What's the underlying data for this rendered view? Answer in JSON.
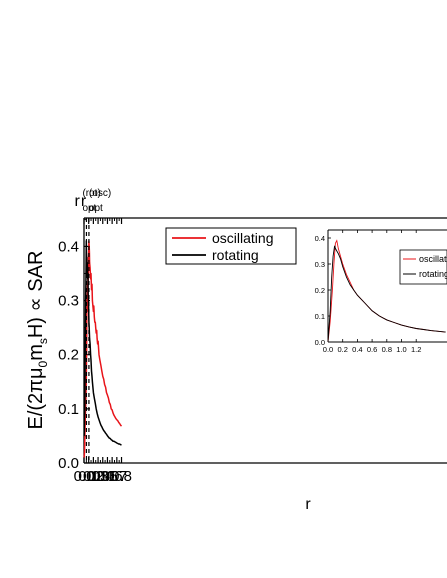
{
  "chart_data": [
    {
      "type": "line",
      "title": "",
      "xlabel": "r",
      "ylabel": "E/(2πμ₀mₛH) ∝ SAR",
      "ylabel_parts": {
        "pre": "E/(2π",
        "mu": "μ",
        "mu_sub": "0",
        "m": "m",
        "m_sub": "s",
        "post": "H) ∝ SAR"
      },
      "xlim": [
        0.0,
        0.8
      ],
      "ylim": [
        0.0,
        0.45
      ],
      "xticks": [
        "0.0",
        "0.1",
        "0.2",
        "0.3",
        "0.4",
        "0.5",
        "0.6",
        "0.7",
        "0.8"
      ],
      "yticks": [
        "0.0",
        "0.1",
        "0.2",
        "0.3",
        "0.4"
      ],
      "grid": false,
      "legend_position": "top-right",
      "series": [
        {
          "name": "oscillating",
          "color": "#e8141a",
          "x": [
            0.005,
            0.01,
            0.02,
            0.03,
            0.04,
            0.05,
            0.055,
            0.06,
            0.065,
            0.07,
            0.075,
            0.08,
            0.085,
            0.09,
            0.095,
            0.1,
            0.105,
            0.11,
            0.115,
            0.12,
            0.13,
            0.14,
            0.15,
            0.16,
            0.17,
            0.18,
            0.19,
            0.2,
            0.21,
            0.22,
            0.23,
            0.24,
            0.25,
            0.26,
            0.27,
            0.28,
            0.29,
            0.3,
            0.32,
            0.34,
            0.36,
            0.38,
            0.4,
            0.42,
            0.44,
            0.46,
            0.48,
            0.5,
            0.52,
            0.54,
            0.56,
            0.58,
            0.6,
            0.62,
            0.64,
            0.66,
            0.68,
            0.7,
            0.72,
            0.74,
            0.76,
            0.78,
            0.8
          ],
          "y": [
            0.01,
            0.02,
            0.05,
            0.09,
            0.12,
            0.16,
            0.2,
            0.27,
            0.31,
            0.28,
            0.33,
            0.3,
            0.36,
            0.33,
            0.38,
            0.39,
            0.41,
            0.4,
            0.39,
            0.37,
            0.36,
            0.34,
            0.35,
            0.32,
            0.33,
            0.3,
            0.29,
            0.28,
            0.29,
            0.27,
            0.26,
            0.26,
            0.25,
            0.24,
            0.245,
            0.23,
            0.22,
            0.225,
            0.2,
            0.19,
            0.18,
            0.17,
            0.16,
            0.155,
            0.145,
            0.14,
            0.13,
            0.125,
            0.12,
            0.112,
            0.108,
            0.1,
            0.098,
            0.092,
            0.088,
            0.085,
            0.082,
            0.08,
            0.078,
            0.075,
            0.073,
            0.07,
            0.068
          ]
        },
        {
          "name": "rotating",
          "color": "#000000",
          "x": [
            0.005,
            0.01,
            0.015,
            0.02,
            0.025,
            0.03,
            0.035,
            0.04,
            0.045,
            0.05,
            0.055,
            0.06,
            0.065,
            0.07,
            0.075,
            0.08,
            0.085,
            0.09,
            0.095,
            0.1,
            0.105,
            0.11,
            0.12,
            0.13,
            0.14,
            0.15,
            0.16,
            0.17,
            0.18,
            0.19,
            0.2,
            0.22,
            0.24,
            0.26,
            0.28,
            0.3,
            0.32,
            0.34,
            0.36,
            0.38,
            0.4,
            0.42,
            0.44,
            0.46,
            0.48,
            0.5,
            0.52,
            0.54,
            0.56,
            0.58,
            0.6,
            0.62,
            0.64,
            0.66,
            0.68,
            0.7,
            0.72,
            0.74,
            0.76,
            0.78,
            0.8
          ],
          "y": [
            0.05,
            0.1,
            0.09,
            0.14,
            0.2,
            0.26,
            0.3,
            0.33,
            0.37,
            0.41,
            0.37,
            0.38,
            0.36,
            0.37,
            0.35,
            0.34,
            0.35,
            0.31,
            0.3,
            0.28,
            0.26,
            0.25,
            0.23,
            0.22,
            0.2,
            0.19,
            0.17,
            0.16,
            0.15,
            0.14,
            0.13,
            0.12,
            0.11,
            0.1,
            0.092,
            0.085,
            0.08,
            0.075,
            0.07,
            0.067,
            0.063,
            0.06,
            0.058,
            0.055,
            0.053,
            0.05,
            0.048,
            0.046,
            0.045,
            0.043,
            0.042,
            0.04,
            0.04,
            0.039,
            0.038,
            0.037,
            0.036,
            0.035,
            0.035,
            0.034,
            0.033
          ]
        }
      ],
      "annotations": [
        {
          "id": "rot",
          "x": 0.052,
          "label_base": "r",
          "label_sup": "(rot)",
          "label_sub": "opt"
        },
        {
          "id": "osc",
          "x": 0.105,
          "label_base": "r",
          "label_sup": "(osc)",
          "label_sub": "opt"
        }
      ]
    },
    {
      "type": "line",
      "title": "",
      "xlabel": "",
      "ylabel": "",
      "xlim": [
        0.0,
        1.6
      ],
      "ylim": [
        0.0,
        0.42
      ],
      "xticks": [
        "0.0",
        "0.2",
        "0.4",
        "0.6",
        "0.8",
        "1.0",
        "1.2"
      ],
      "yticks": [
        "0.0",
        "0.1",
        "0.2",
        "0.3",
        "0.4"
      ],
      "grid": false,
      "legend_position": "right",
      "series": [
        {
          "name": "oscillating",
          "color": "#e8141a",
          "x": [
            0.0,
            0.03,
            0.06,
            0.08,
            0.1,
            0.12,
            0.14,
            0.17,
            0.2,
            0.25,
            0.3,
            0.35,
            0.4,
            0.5,
            0.6,
            0.7,
            0.8,
            0.9,
            1.0,
            1.1,
            1.2,
            1.3,
            1.4,
            1.5,
            1.6
          ],
          "y": [
            0.0,
            0.08,
            0.2,
            0.3,
            0.38,
            0.39,
            0.36,
            0.33,
            0.3,
            0.26,
            0.23,
            0.2,
            0.18,
            0.15,
            0.12,
            0.1,
            0.085,
            0.075,
            0.065,
            0.058,
            0.052,
            0.048,
            0.044,
            0.041,
            0.038
          ]
        },
        {
          "name": "rotating",
          "color": "#000000",
          "x": [
            0.0,
            0.03,
            0.05,
            0.07,
            0.09,
            0.1,
            0.12,
            0.14,
            0.17,
            0.2,
            0.25,
            0.3,
            0.35,
            0.4,
            0.5,
            0.6,
            0.7,
            0.8,
            0.9,
            1.0,
            1.1,
            1.2,
            1.3,
            1.4,
            1.5,
            1.6
          ],
          "y": [
            0.0,
            0.12,
            0.25,
            0.33,
            0.37,
            0.36,
            0.35,
            0.34,
            0.32,
            0.29,
            0.25,
            0.22,
            0.2,
            0.18,
            0.15,
            0.12,
            0.1,
            0.085,
            0.075,
            0.065,
            0.058,
            0.052,
            0.048,
            0.044,
            0.041,
            0.038
          ]
        }
      ]
    }
  ]
}
